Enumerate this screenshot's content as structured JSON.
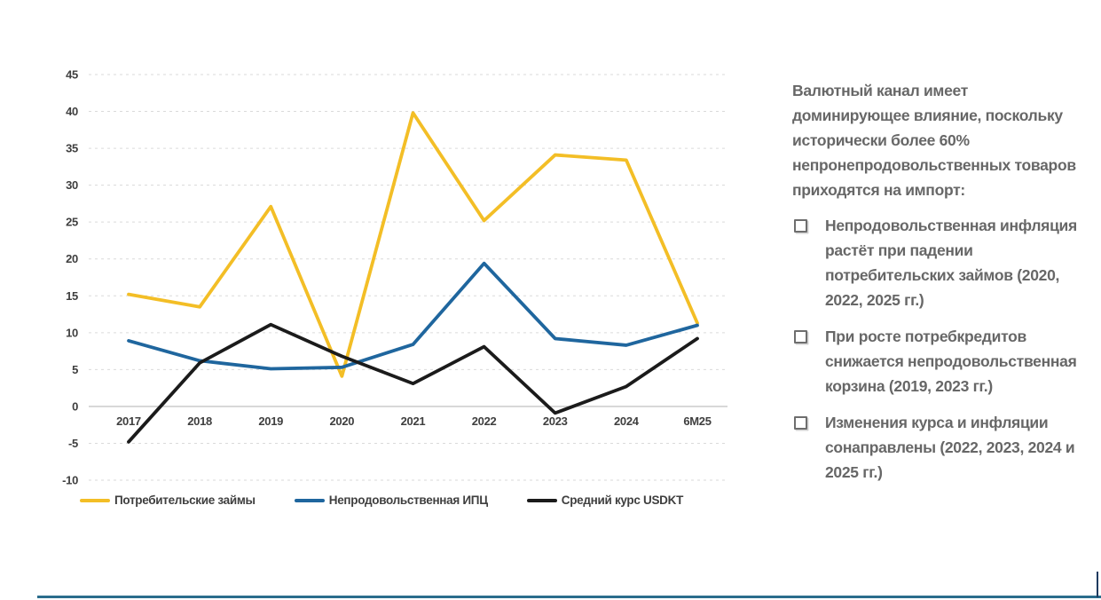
{
  "chart_data": {
    "type": "line",
    "title": "",
    "xlabel": "",
    "ylabel": "",
    "categories": [
      "2017",
      "2018",
      "2019",
      "2020",
      "2021",
      "2022",
      "2023",
      "2024",
      "6M25"
    ],
    "series": [
      {
        "name": "Потребительские займы",
        "slug": "consumer-loans",
        "color": "#F3BE26",
        "values": [
          15.2,
          13.5,
          27.1,
          4.1,
          39.8,
          25.2,
          34.1,
          33.4,
          11.3
        ]
      },
      {
        "name": "Непродовольственная ИПЦ",
        "slug": "nonfood-cpi",
        "color": "#1F669E",
        "values": [
          8.9,
          6.2,
          5.1,
          5.3,
          8.4,
          19.4,
          9.2,
          8.3,
          11.0
        ]
      },
      {
        "name": "Средний курс USDKT",
        "slug": "usdkt-avg-rate",
        "color": "#1B1B1B",
        "values": [
          -4.8,
          5.9,
          11.1,
          6.8,
          3.1,
          8.1,
          -0.9,
          2.7,
          9.2
        ]
      }
    ],
    "ylim": [
      -10,
      45
    ],
    "yticks": [
      45,
      40,
      35,
      30,
      25,
      20,
      15,
      10,
      5,
      0,
      -5,
      -10
    ],
    "grid": "dashed-horizontal",
    "legend_position": "bottom",
    "gridline_color": "#dadada",
    "zero_axis_color": "#c6c6c6"
  },
  "panel": {
    "intro": "Валютный канал имеет доминирующее влияние, поскольку исторически более 60% непронепродовольственных товаров приходятся на импорт:",
    "bullets": [
      {
        "text": "Непродовольственная инфляция растёт при падении потребительских займов (2020, 2022, 2025 гг.)"
      },
      {
        "text": "При росте потребкредитов снижается непродовольственная корзина (2019, 2023 гг.)"
      },
      {
        "text": "Изменения курса и инфляции сонаправлены (2022, 2023, 2024 и 2025 гг.)"
      }
    ]
  },
  "footer": {
    "divider_color": "#2B6D8C",
    "accent_color": "#1E3A5F"
  }
}
